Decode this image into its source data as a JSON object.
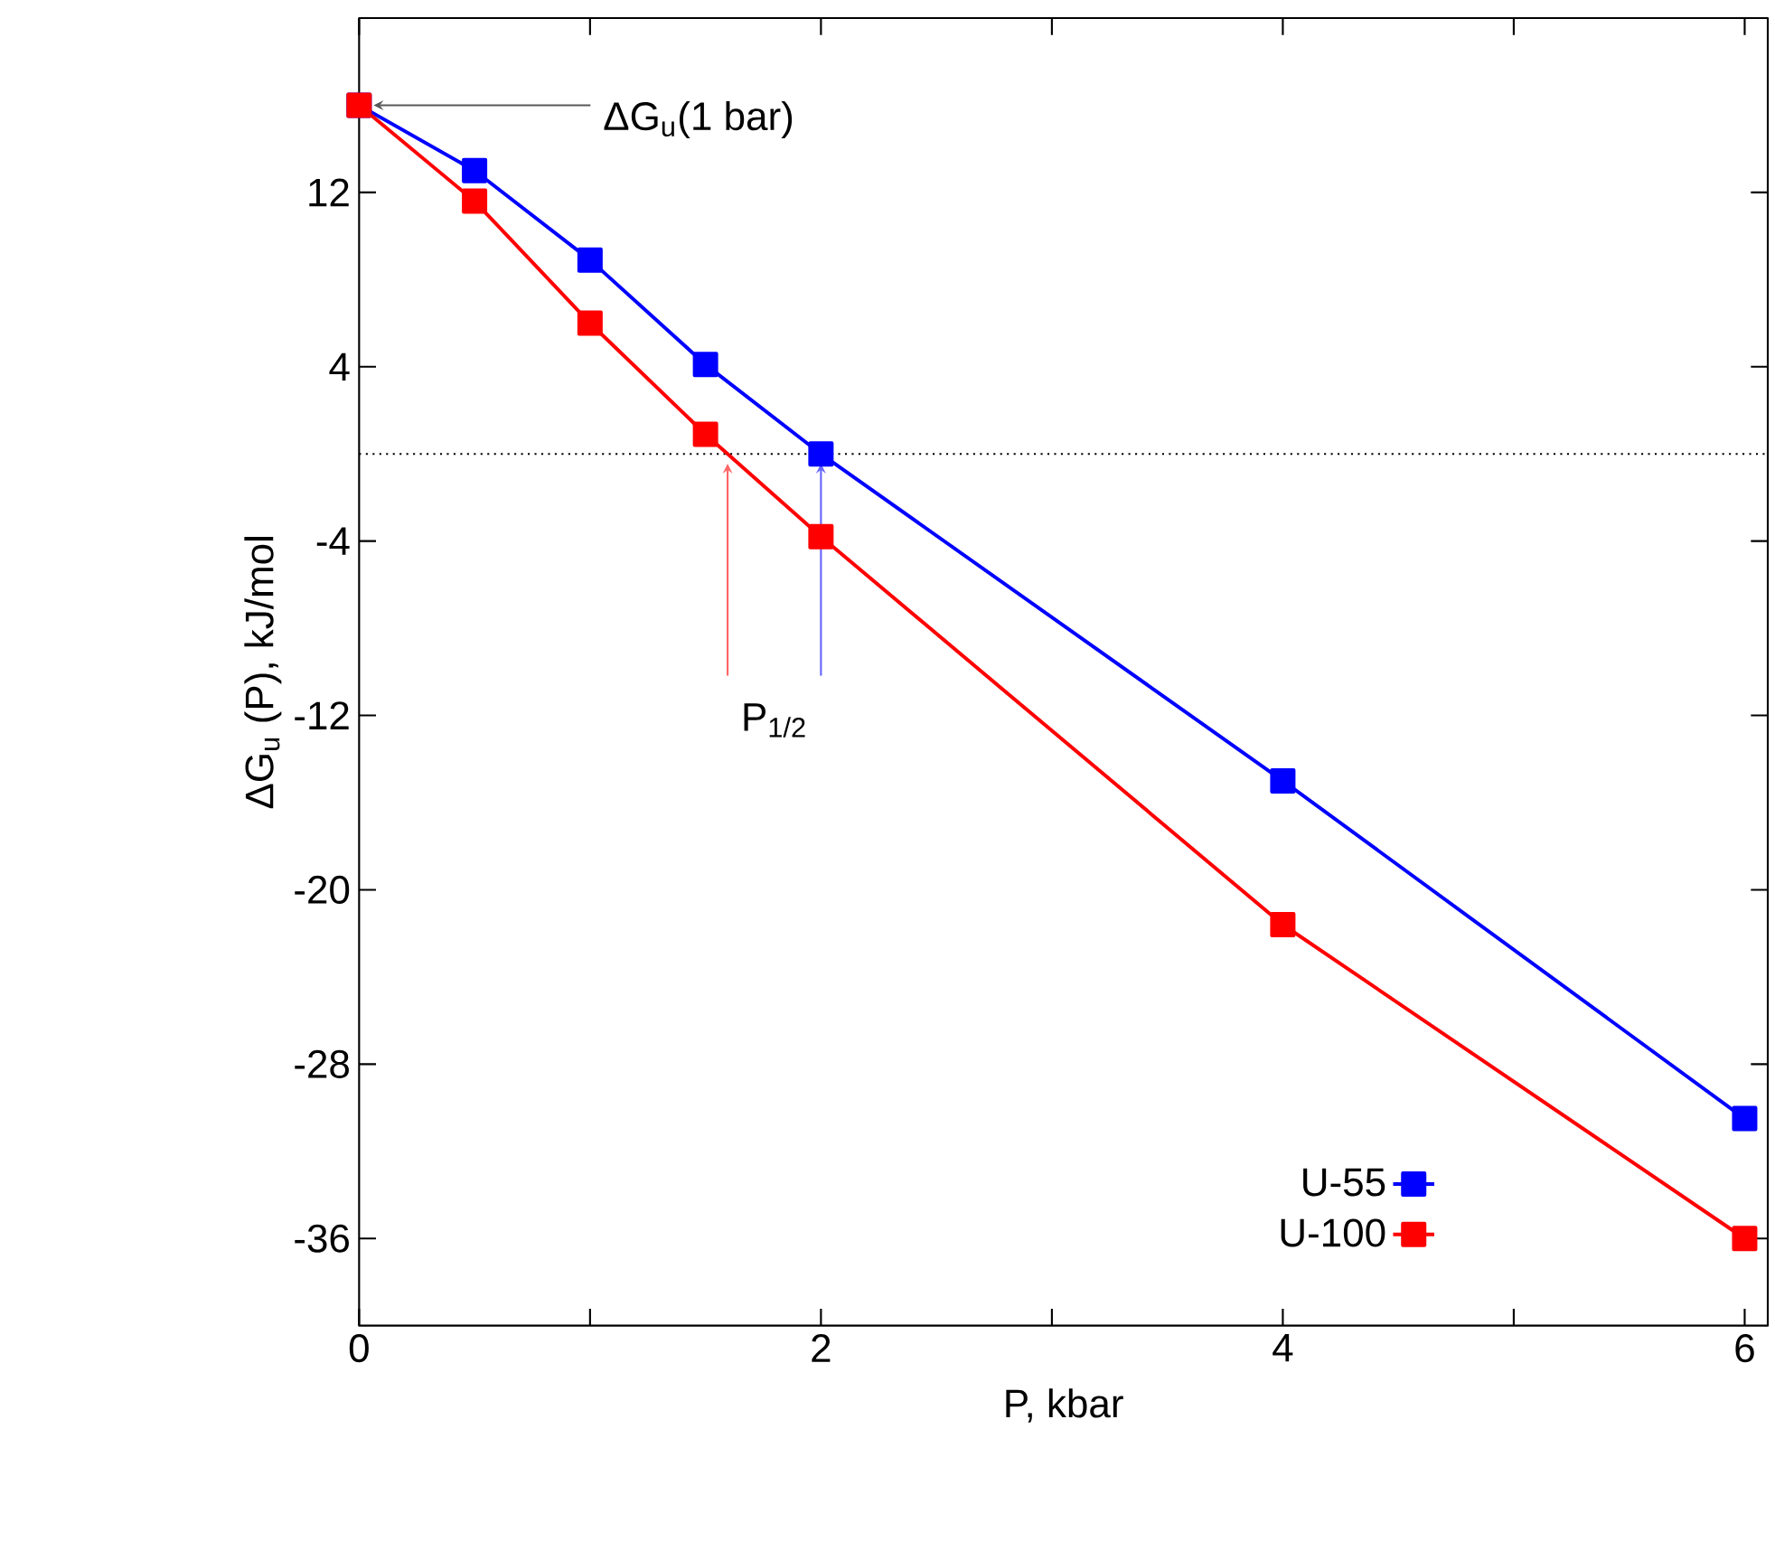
{
  "chart_data": {
    "type": "line",
    "xlabel": "P, kbar",
    "ylabel": "ΔG$_{u}$ (P), kJ/mol",
    "x": [
      0,
      0.5,
      1,
      1.5,
      2,
      4,
      6
    ],
    "series": [
      {
        "name": "U-55",
        "color": "#0000ff",
        "values": [
          16,
          13.0,
          8.9,
          4.1,
          0,
          -15.0,
          -30.5
        ]
      },
      {
        "name": "U-100",
        "color": "#ff0000",
        "values": [
          16,
          11.6,
          6.0,
          0.9,
          -3.8,
          -21.6,
          -36.0
        ]
      }
    ],
    "xlim": [
      0,
      6.1
    ],
    "ylim": [
      -40,
      20
    ],
    "xticks": [
      0,
      2,
      4,
      6
    ],
    "yticks": [
      12,
      4,
      -4,
      -12,
      -20,
      -28,
      -36
    ],
    "ref_lines": [
      {
        "axis": "y",
        "value": 0,
        "line_style": "dotted",
        "color": "#000000"
      }
    ],
    "annotations": [
      "ΔG$_{u}$(1 bar)",
      "P$_{1/2}$"
    ],
    "legend": "bottom right",
    "marker": "square",
    "line_style": "solid",
    "grid": false
  }
}
